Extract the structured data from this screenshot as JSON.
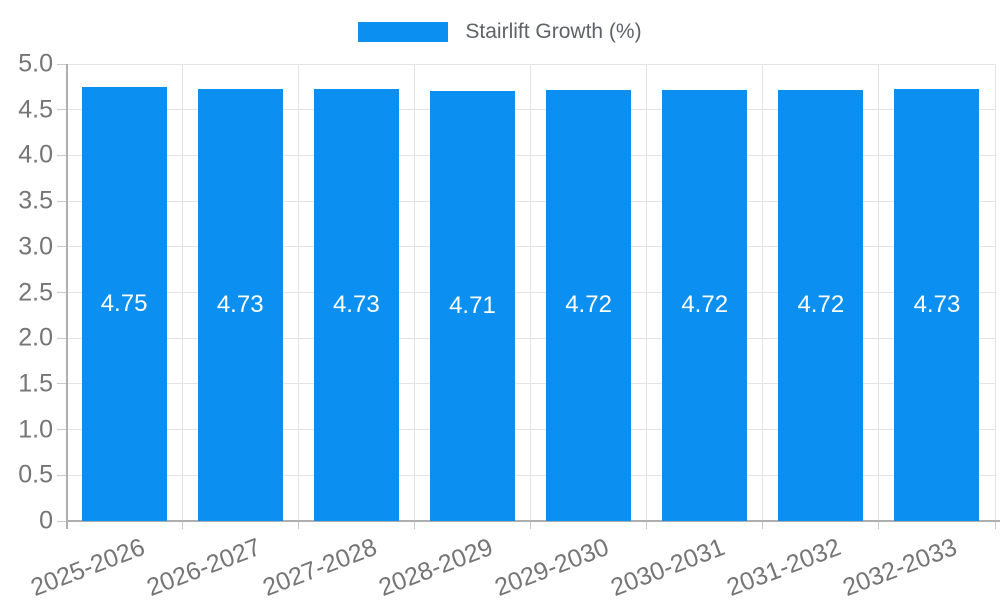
{
  "chart_data": {
    "type": "bar",
    "title": "",
    "legend_label": "Stairlift Growth (%)",
    "legend_position": "top",
    "categories": [
      "2025-2026",
      "2026-2027",
      "2027-2028",
      "2028-2029",
      "2029-2030",
      "2030-2031",
      "2031-2032",
      "2032-2033"
    ],
    "values": [
      4.75,
      4.73,
      4.73,
      4.71,
      4.72,
      4.72,
      4.72,
      4.73
    ],
    "value_labels": [
      "4.75",
      "4.73",
      "4.73",
      "4.71",
      "4.72",
      "4.72",
      "4.72",
      "4.73"
    ],
    "xlabel": "",
    "ylabel": "",
    "ylim": [
      0,
      5
    ],
    "y_ticks": [
      0,
      0.5,
      1.0,
      1.5,
      2.0,
      2.5,
      3.0,
      3.5,
      4.0,
      4.5,
      5.0
    ],
    "y_tick_labels": [
      "0",
      "0.5",
      "1.0",
      "1.5",
      "2.0",
      "2.5",
      "3.0",
      "3.5",
      "4.0",
      "4.5",
      "5.0"
    ],
    "grid": "on",
    "colors": {
      "bar": "#0b90f2",
      "axis": "#aeaeae",
      "gridline": "#e4e4e4",
      "tick": "#c9c9c9",
      "axis_label": "#757575",
      "legend_text": "#5f6368",
      "value_label": "#ffffff",
      "background": "#ffffff"
    }
  }
}
